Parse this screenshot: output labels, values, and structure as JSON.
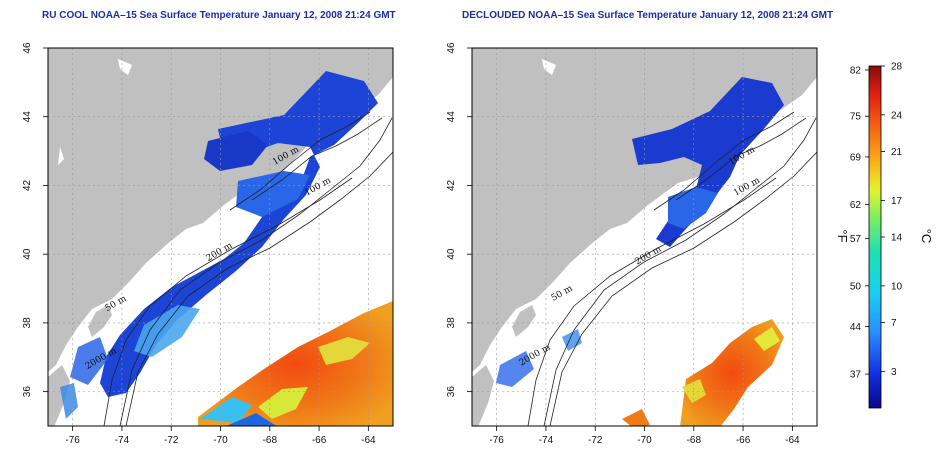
{
  "panels": [
    {
      "id": "left",
      "title": "RU COOL NOAA–15 Sea Surface Temperature January 12, 2008 21:24 GMT",
      "contours": [
        {
          "label": "100 m",
          "lon": -67.3,
          "lat": 42.8
        },
        {
          "label": "100 m",
          "lon": -66.0,
          "lat": 41.9
        },
        {
          "label": "200 m",
          "lon": -70.0,
          "lat": 40.0
        },
        {
          "label": "50 m",
          "lon": -74.2,
          "lat": 38.5
        },
        {
          "label": "2000 m",
          "lon": -74.8,
          "lat": 36.9
        }
      ]
    },
    {
      "id": "right",
      "title": "DECLOUDED NOAA–15 Sea Surface Temperature January 12, 2008 21:24 GMT",
      "contours": [
        {
          "label": "100 m",
          "lon": -66.0,
          "lat": 42.8
        },
        {
          "label": "100 m",
          "lon": -65.8,
          "lat": 41.9
        },
        {
          "label": "200 m",
          "lon": -69.8,
          "lat": 39.9
        },
        {
          "label": "50 m",
          "lon": -73.3,
          "lat": 38.8
        },
        {
          "label": "2000 m",
          "lon": -74.4,
          "lat": 37.0
        }
      ]
    }
  ],
  "axes": {
    "lon_range": [
      -77,
      -63
    ],
    "lat_range": [
      35,
      46
    ],
    "x_ticks": [
      -76,
      -74,
      -72,
      -70,
      -68,
      -66,
      -64
    ],
    "y_ticks": [
      36,
      38,
      40,
      42,
      44,
      46
    ]
  },
  "colorbar": {
    "celsius_ticks": [
      3,
      7,
      10,
      14,
      17,
      21,
      24,
      28
    ],
    "fahrenheit_ticks": [
      37,
      44,
      50,
      57,
      62,
      69,
      75,
      82
    ],
    "range_c": [
      0,
      28
    ],
    "unit_left": "°F",
    "unit_right": "°C"
  },
  "colors": {
    "land": "#c0c0c0",
    "cloud": "#ffffff",
    "cold": "#1a3cd8",
    "warm": "#ee6a18"
  }
}
